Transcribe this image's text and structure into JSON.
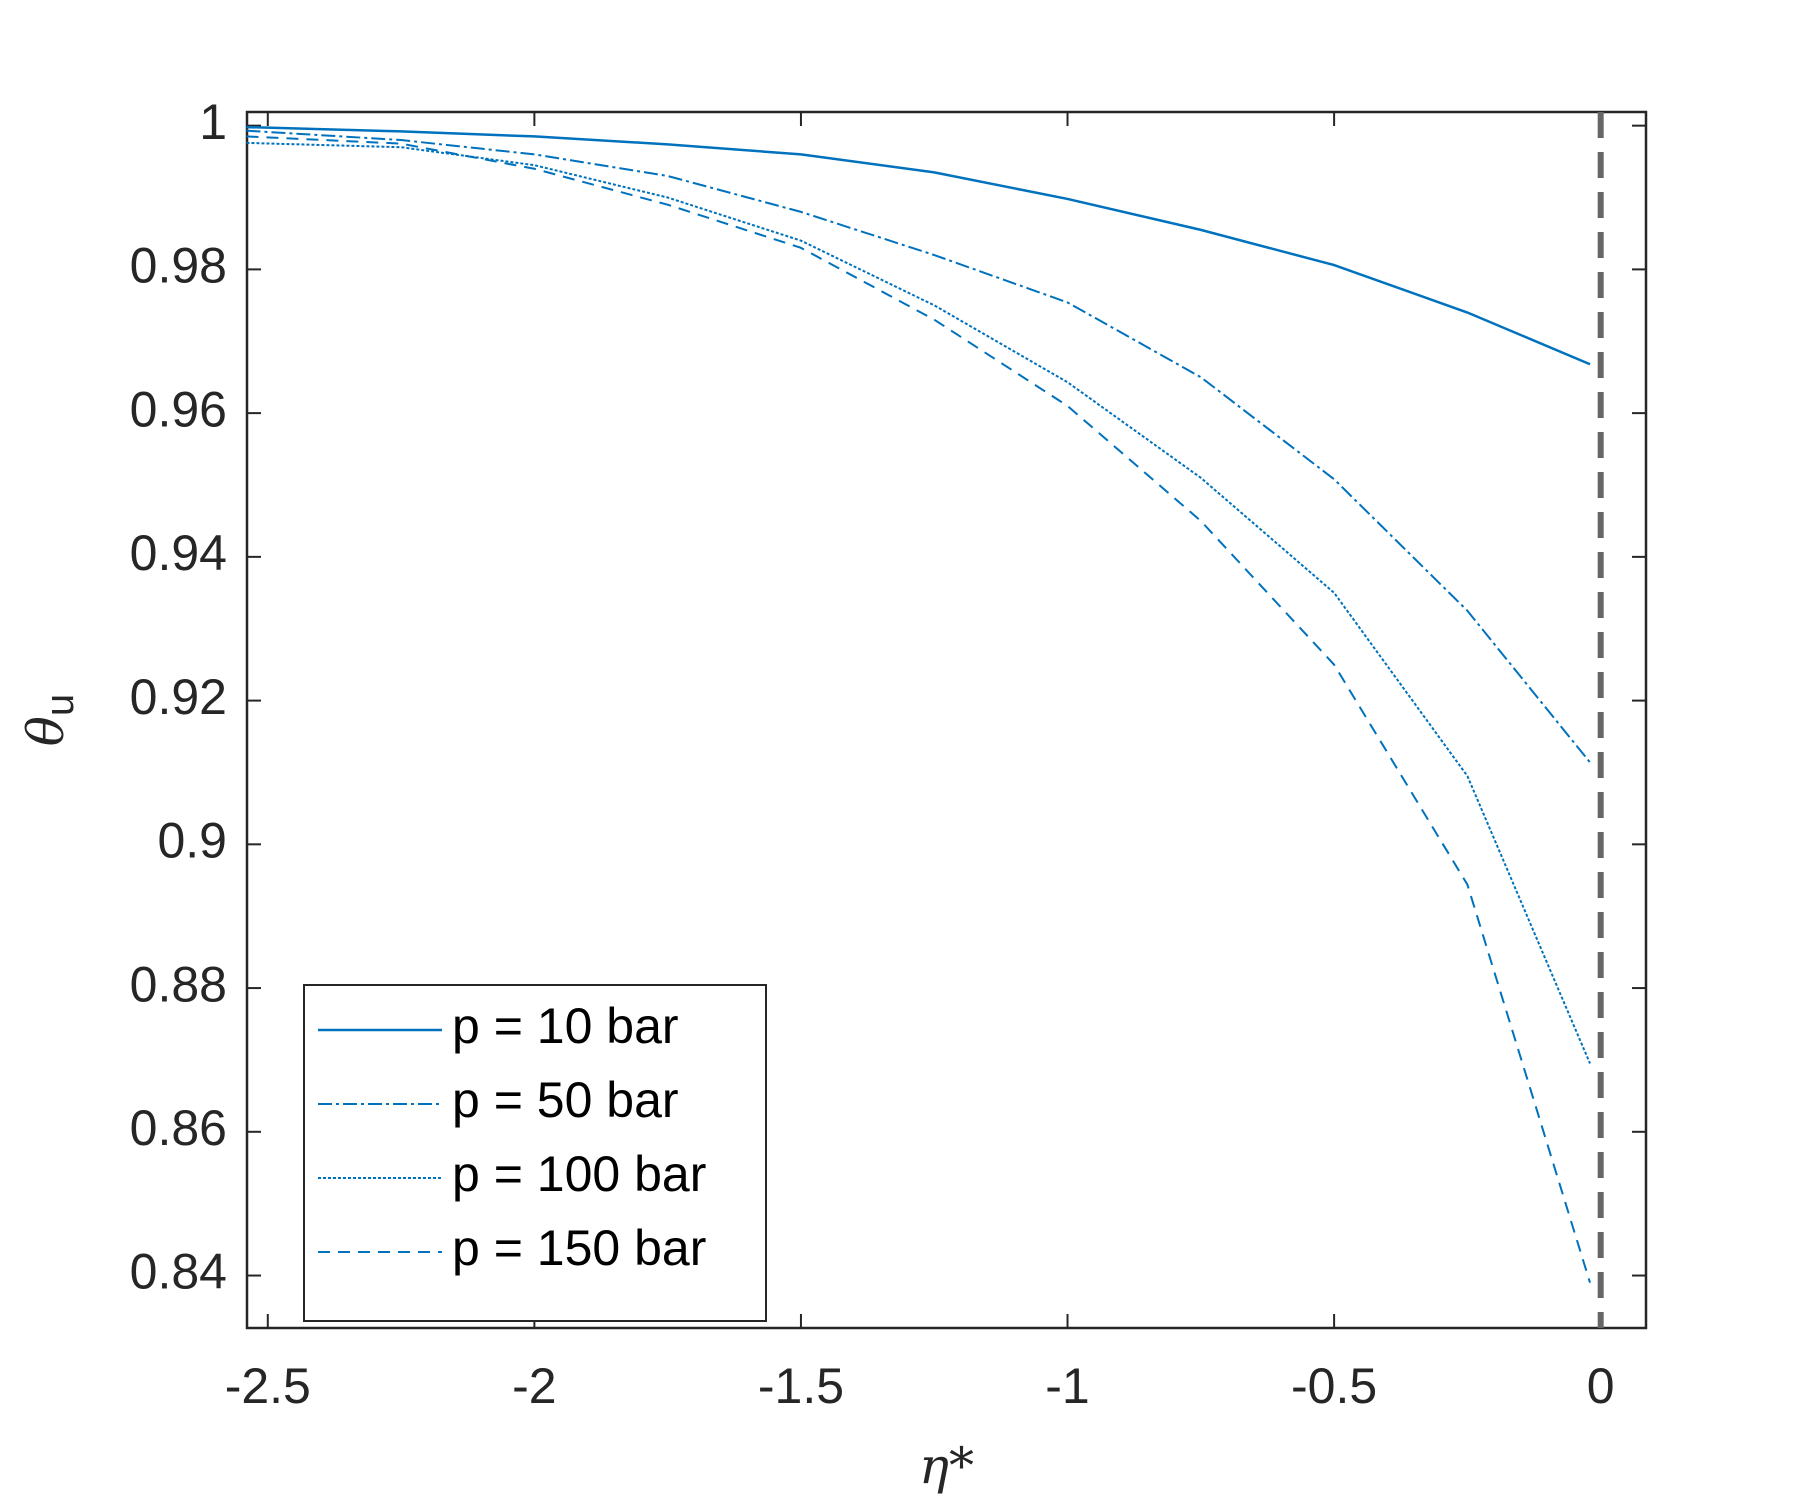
{
  "chart_data": {
    "type": "line",
    "xlabel": "η*",
    "ylabel": "θ",
    "ylabel_subscript": "u",
    "x": [
      -2.54,
      -2.25,
      -2.0,
      -1.75,
      -1.5,
      -1.25,
      -1.0,
      -0.75,
      -0.5,
      -0.25,
      -0.02
    ],
    "series": [
      {
        "name": "p = 10 bar",
        "color": "#0072bd",
        "style": "solid",
        "values": [
          0.9998,
          0.9992,
          0.9985,
          0.9974,
          0.996,
          0.9935,
          0.9898,
          0.9855,
          0.9806,
          0.974,
          0.9668
        ]
      },
      {
        "name": "p = 50 bar",
        "color": "#0072bd",
        "style": "dashdot",
        "values": [
          0.9993,
          0.998,
          0.996,
          0.993,
          0.988,
          0.982,
          0.9754,
          0.965,
          0.9508,
          0.9325,
          0.9114
        ]
      },
      {
        "name": "p = 100 bar",
        "color": "#0072bd",
        "style": "dotted",
        "values": [
          0.9976,
          0.997,
          0.9945,
          0.99,
          0.984,
          0.975,
          0.9643,
          0.951,
          0.935,
          0.9095,
          0.8695
        ]
      },
      {
        "name": "p = 150 bar",
        "color": "#0072bd",
        "style": "dashed",
        "values": [
          0.9985,
          0.9975,
          0.994,
          0.989,
          0.983,
          0.973,
          0.961,
          0.945,
          0.925,
          0.8944,
          0.839
        ]
      }
    ],
    "vline": 0,
    "vline_color": "#666666",
    "xlim": [
      -2.539,
      0.085
    ],
    "ylim": [
      0.8327,
      1.0019
    ],
    "xticks": [
      -2.5,
      -2,
      -1.5,
      -1,
      -0.5,
      0
    ],
    "yticks": [
      0.84,
      0.86,
      0.88,
      0.9,
      0.92,
      0.94,
      0.96,
      0.98,
      1
    ],
    "legend": "lower-left",
    "grid": false
  }
}
